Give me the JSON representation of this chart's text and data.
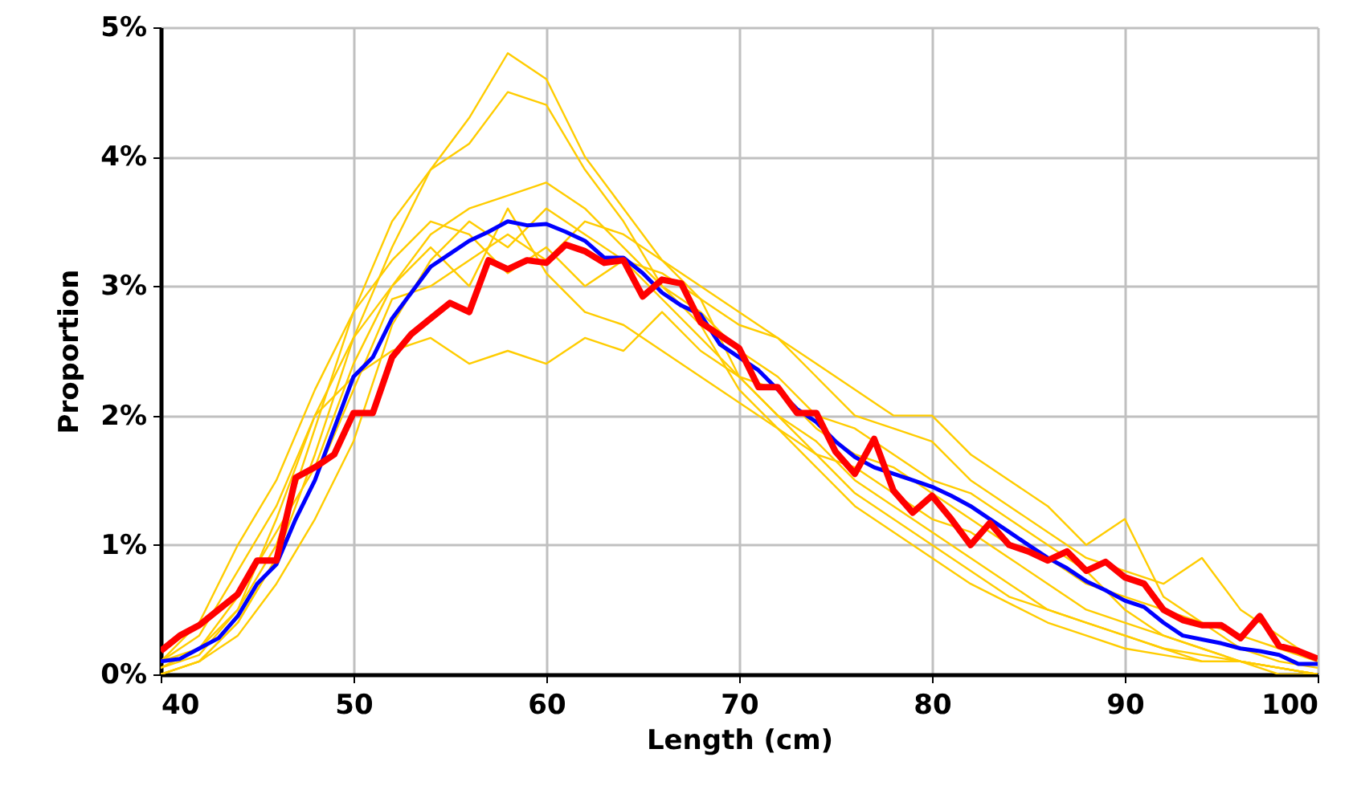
{
  "chart_data": {
    "type": "line",
    "xlabel": "Length (cm)",
    "ylabel": "Proportion",
    "xlim": [
      40,
      100
    ],
    "xticks": [
      40,
      50,
      60,
      70,
      80,
      90,
      100
    ],
    "ylim": [
      0,
      5
    ],
    "yticks": [
      {
        "value": 0,
        "label": "0%"
      },
      {
        "value": 1,
        "label": "1%"
      },
      {
        "value": 2,
        "label": "2%"
      },
      {
        "value": 3,
        "label": "3%"
      },
      {
        "value": 4,
        "label": "4%"
      },
      {
        "value": 5,
        "label": "5%"
      }
    ],
    "grid": true,
    "marker": "none",
    "line_style": "solid",
    "series": [
      {
        "color": "#ffcc00",
        "x": [
          40,
          42,
          44,
          46,
          48,
          50,
          52,
          54,
          56,
          58,
          60,
          62,
          64,
          66,
          68,
          70,
          72,
          74,
          76,
          78,
          80,
          82,
          84,
          86,
          88,
          90,
          92,
          94,
          96,
          98,
          100
        ],
        "values": [
          0,
          0.1,
          0.4,
          0.9,
          1.7,
          2.6,
          3.3,
          3.9,
          4.3,
          4.8,
          4.6,
          4.0,
          3.6,
          3.2,
          2.9,
          2.3,
          2.0,
          1.7,
          1.4,
          1.2,
          1.0,
          0.8,
          0.6,
          0.5,
          0.4,
          0.3,
          0.2,
          0.15,
          0.1,
          0.05,
          0
        ]
      },
      {
        "color": "#ffcc00",
        "x": [
          40,
          42,
          44,
          46,
          48,
          50,
          52,
          54,
          56,
          58,
          60,
          62,
          64,
          66,
          68,
          70,
          72,
          74,
          76,
          78,
          80,
          82,
          84,
          86,
          88,
          90,
          92,
          94,
          96,
          98,
          100
        ],
        "values": [
          0.05,
          0.15,
          0.5,
          1.0,
          1.9,
          2.8,
          3.5,
          3.9,
          4.1,
          4.5,
          4.4,
          3.9,
          3.5,
          3.0,
          2.7,
          2.2,
          1.9,
          1.6,
          1.3,
          1.1,
          0.9,
          0.7,
          0.55,
          0.4,
          0.3,
          0.2,
          0.15,
          0.1,
          0.1,
          0.05,
          0
        ]
      },
      {
        "color": "#ffcc00",
        "x": [
          40,
          42,
          44,
          46,
          48,
          50,
          52,
          54,
          56,
          58,
          60,
          62,
          64,
          66,
          68,
          70,
          72,
          74,
          76,
          78,
          80,
          82,
          84,
          86,
          88,
          90,
          92,
          94,
          96,
          98,
          100
        ],
        "values": [
          0.1,
          0.3,
          0.8,
          1.3,
          2.0,
          2.3,
          2.5,
          2.6,
          2.4,
          2.5,
          2.4,
          2.6,
          2.5,
          2.8,
          2.5,
          2.3,
          2.2,
          1.9,
          1.7,
          1.6,
          1.4,
          1.2,
          1.0,
          0.9,
          0.7,
          0.6,
          0.5,
          0.4,
          0.3,
          0.2,
          0.1
        ]
      },
      {
        "color": "#ffcc00",
        "x": [
          40,
          42,
          44,
          46,
          48,
          50,
          52,
          54,
          56,
          58,
          60,
          62,
          64,
          66,
          68,
          70,
          72,
          74,
          76,
          78,
          80,
          82,
          84,
          86,
          88,
          90,
          92,
          94,
          96,
          98,
          100
        ],
        "values": [
          0.1,
          0.2,
          0.6,
          1.1,
          1.6,
          2.4,
          3.0,
          3.4,
          3.6,
          3.7,
          3.8,
          3.6,
          3.3,
          3.0,
          2.8,
          2.5,
          2.3,
          2.0,
          1.9,
          1.7,
          1.5,
          1.4,
          1.2,
          1.0,
          0.8,
          0.5,
          0.3,
          0.2,
          0.1,
          0.05,
          0
        ]
      },
      {
        "color": "#ffcc00",
        "x": [
          40,
          42,
          44,
          46,
          48,
          50,
          52,
          54,
          56,
          58,
          60,
          62,
          64,
          66,
          68,
          70,
          72,
          74,
          76,
          78,
          80,
          82,
          84,
          86,
          88,
          90,
          92,
          94,
          96,
          98,
          100
        ],
        "values": [
          0,
          0.1,
          0.3,
          0.7,
          1.2,
          1.8,
          2.7,
          3.2,
          3.5,
          3.3,
          3.6,
          3.4,
          3.2,
          3.1,
          2.9,
          2.7,
          2.6,
          2.3,
          2.0,
          1.9,
          1.8,
          1.5,
          1.3,
          1.1,
          0.9,
          0.8,
          0.7,
          0.9,
          0.5,
          0.3,
          0.1
        ]
      },
      {
        "color": "#ffcc00",
        "x": [
          40,
          42,
          44,
          46,
          48,
          50,
          52,
          54,
          56,
          58,
          60,
          62,
          64,
          66,
          68,
          70,
          72,
          74,
          76,
          78,
          80,
          82,
          84,
          86,
          88,
          90,
          92,
          94,
          96,
          98,
          100
        ],
        "values": [
          0.1,
          0.4,
          1.0,
          1.5,
          2.2,
          2.8,
          3.2,
          3.5,
          3.4,
          3.1,
          3.3,
          3.0,
          3.2,
          2.9,
          2.6,
          2.3,
          2.0,
          1.8,
          1.5,
          1.3,
          1.1,
          0.9,
          0.7,
          0.5,
          0.4,
          0.3,
          0.2,
          0.1,
          0.1,
          0,
          0
        ]
      },
      {
        "color": "#ffcc00",
        "x": [
          40,
          42,
          44,
          46,
          48,
          50,
          52,
          54,
          56,
          58,
          60,
          62,
          64,
          66,
          68,
          70,
          72,
          74,
          76,
          78,
          80,
          82,
          84,
          86,
          88,
          90,
          92,
          94,
          96,
          98,
          100
        ],
        "values": [
          0,
          0.1,
          0.4,
          0.9,
          1.5,
          2.2,
          2.9,
          3.0,
          3.2,
          3.4,
          3.2,
          3.5,
          3.4,
          3.2,
          3.0,
          2.8,
          2.6,
          2.4,
          2.2,
          2.0,
          2.0,
          1.7,
          1.5,
          1.3,
          1.0,
          1.2,
          0.6,
          0.4,
          0.2,
          0.1,
          0.05
        ]
      },
      {
        "color": "#ffcc00",
        "x": [
          40,
          42,
          44,
          46,
          48,
          50,
          52,
          54,
          56,
          58,
          60,
          62,
          64,
          66,
          68,
          70,
          72,
          74,
          76,
          78,
          80,
          82,
          84,
          86,
          88,
          90,
          92,
          94,
          96,
          98,
          100
        ],
        "values": [
          0.05,
          0.2,
          0.5,
          1.2,
          2.0,
          2.6,
          3.0,
          3.3,
          3.0,
          3.6,
          3.1,
          2.8,
          2.7,
          2.5,
          2.3,
          2.1,
          1.9,
          1.7,
          1.6,
          1.4,
          1.2,
          1.1,
          0.9,
          0.7,
          0.5,
          0.4,
          0.3,
          0.2,
          0.1,
          0.05,
          0
        ]
      },
      {
        "color": "#0000ff",
        "x": [
          40,
          41,
          42,
          43,
          44,
          45,
          46,
          47,
          48,
          49,
          50,
          51,
          52,
          53,
          54,
          55,
          56,
          57,
          58,
          59,
          60,
          61,
          62,
          63,
          64,
          65,
          66,
          67,
          68,
          69,
          70,
          71,
          72,
          73,
          74,
          75,
          76,
          77,
          78,
          79,
          80,
          81,
          82,
          83,
          84,
          85,
          86,
          87,
          88,
          89,
          90,
          91,
          92,
          93,
          94,
          95,
          96,
          97,
          98,
          99,
          100
        ],
        "values": [
          0.1,
          0.12,
          0.2,
          0.28,
          0.45,
          0.7,
          0.85,
          1.2,
          1.5,
          1.9,
          2.3,
          2.45,
          2.75,
          2.95,
          3.15,
          3.25,
          3.35,
          3.42,
          3.5,
          3.47,
          3.48,
          3.42,
          3.35,
          3.22,
          3.22,
          3.1,
          2.95,
          2.85,
          2.78,
          2.55,
          2.45,
          2.35,
          2.2,
          2.05,
          1.95,
          1.8,
          1.68,
          1.6,
          1.55,
          1.5,
          1.45,
          1.38,
          1.3,
          1.2,
          1.1,
          1.0,
          0.9,
          0.82,
          0.72,
          0.65,
          0.57,
          0.52,
          0.4,
          0.3,
          0.27,
          0.24,
          0.2,
          0.18,
          0.15,
          0.08,
          0.08
        ]
      },
      {
        "color": "#ff0000",
        "x": [
          40,
          41,
          42,
          43,
          44,
          45,
          46,
          47,
          48,
          49,
          50,
          51,
          52,
          53,
          54,
          55,
          56,
          57,
          58,
          59,
          60,
          61,
          62,
          63,
          64,
          65,
          66,
          67,
          68,
          69,
          70,
          71,
          72,
          73,
          74,
          75,
          76,
          77,
          78,
          79,
          80,
          81,
          82,
          83,
          84,
          85,
          86,
          87,
          88,
          89,
          90,
          91,
          92,
          93,
          94,
          95,
          96,
          97,
          98,
          99,
          100
        ],
        "values": [
          0.18,
          0.3,
          0.38,
          0.5,
          0.62,
          0.88,
          0.88,
          1.52,
          1.6,
          1.7,
          2.02,
          2.02,
          2.45,
          2.63,
          2.75,
          2.87,
          2.8,
          3.2,
          3.13,
          3.2,
          3.18,
          3.32,
          3.27,
          3.18,
          3.2,
          2.92,
          3.05,
          3.02,
          2.72,
          2.62,
          2.52,
          2.22,
          2.22,
          2.02,
          2.02,
          1.72,
          1.55,
          1.82,
          1.42,
          1.25,
          1.38,
          1.2,
          1.0,
          1.17,
          1.0,
          0.95,
          0.88,
          0.95,
          0.8,
          0.87,
          0.75,
          0.7,
          0.5,
          0.42,
          0.38,
          0.38,
          0.28,
          0.45,
          0.22,
          0.18,
          0.12
        ]
      }
    ]
  }
}
